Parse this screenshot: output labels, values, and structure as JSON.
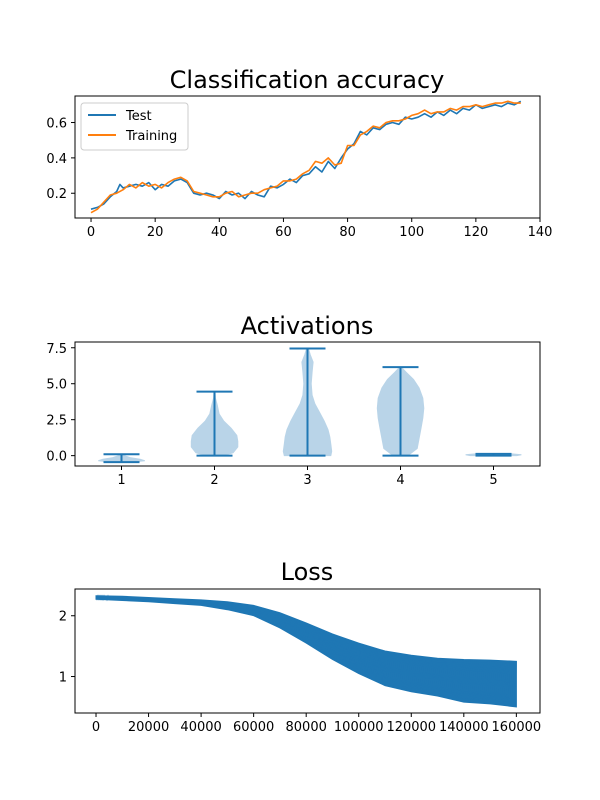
{
  "colors": {
    "test": "#1f77b4",
    "training": "#ff7f0e",
    "violin_fill": "#b9d4e8",
    "violin_line": "#1f77b4"
  },
  "chart_data": [
    {
      "type": "line",
      "title": "Classification accuracy",
      "xlabel": "",
      "ylabel": "",
      "xlim": [
        -5,
        140
      ],
      "ylim": [
        0.06,
        0.75
      ],
      "xticks": [
        "0",
        "20",
        "40",
        "60",
        "80",
        "100",
        "120",
        "140"
      ],
      "yticks": [
        "0.2",
        "0.4",
        "0.6"
      ],
      "legend": "top-left",
      "grid": false,
      "series": [
        {
          "name": "Test",
          "color": "#1f77b4",
          "points": [
            [
              0,
              0.11
            ],
            [
              2,
              0.12
            ],
            [
              4,
              0.14
            ],
            [
              6,
              0.18
            ],
            [
              8,
              0.21
            ],
            [
              9,
              0.25
            ],
            [
              10,
              0.23
            ],
            [
              12,
              0.24
            ],
            [
              14,
              0.25
            ],
            [
              16,
              0.24
            ],
            [
              18,
              0.26
            ],
            [
              20,
              0.22
            ],
            [
              22,
              0.25
            ],
            [
              24,
              0.24
            ],
            [
              26,
              0.27
            ],
            [
              28,
              0.28
            ],
            [
              30,
              0.26
            ],
            [
              32,
              0.2
            ],
            [
              34,
              0.19
            ],
            [
              36,
              0.2
            ],
            [
              38,
              0.19
            ],
            [
              40,
              0.17
            ],
            [
              42,
              0.21
            ],
            [
              44,
              0.19
            ],
            [
              46,
              0.2
            ],
            [
              48,
              0.17
            ],
            [
              50,
              0.21
            ],
            [
              52,
              0.19
            ],
            [
              54,
              0.18
            ],
            [
              56,
              0.24
            ],
            [
              58,
              0.23
            ],
            [
              60,
              0.25
            ],
            [
              62,
              0.28
            ],
            [
              64,
              0.26
            ],
            [
              66,
              0.3
            ],
            [
              68,
              0.31
            ],
            [
              70,
              0.35
            ],
            [
              72,
              0.32
            ],
            [
              74,
              0.38
            ],
            [
              76,
              0.34
            ],
            [
              78,
              0.4
            ],
            [
              80,
              0.45
            ],
            [
              82,
              0.48
            ],
            [
              84,
              0.55
            ],
            [
              86,
              0.53
            ],
            [
              88,
              0.57
            ],
            [
              90,
              0.56
            ],
            [
              92,
              0.59
            ],
            [
              94,
              0.6
            ],
            [
              96,
              0.59
            ],
            [
              98,
              0.63
            ],
            [
              100,
              0.62
            ],
            [
              102,
              0.63
            ],
            [
              104,
              0.65
            ],
            [
              106,
              0.63
            ],
            [
              108,
              0.66
            ],
            [
              110,
              0.64
            ],
            [
              112,
              0.67
            ],
            [
              114,
              0.65
            ],
            [
              116,
              0.68
            ],
            [
              118,
              0.67
            ],
            [
              120,
              0.7
            ],
            [
              122,
              0.68
            ],
            [
              124,
              0.69
            ],
            [
              126,
              0.7
            ],
            [
              128,
              0.69
            ],
            [
              130,
              0.71
            ],
            [
              132,
              0.7
            ],
            [
              134,
              0.72
            ]
          ]
        },
        {
          "name": "Training",
          "color": "#ff7f0e",
          "points": [
            [
              0,
              0.09
            ],
            [
              2,
              0.11
            ],
            [
              4,
              0.15
            ],
            [
              6,
              0.19
            ],
            [
              8,
              0.2
            ],
            [
              10,
              0.22
            ],
            [
              12,
              0.25
            ],
            [
              14,
              0.23
            ],
            [
              16,
              0.26
            ],
            [
              18,
              0.24
            ],
            [
              20,
              0.25
            ],
            [
              22,
              0.23
            ],
            [
              24,
              0.26
            ],
            [
              26,
              0.28
            ],
            [
              28,
              0.29
            ],
            [
              30,
              0.27
            ],
            [
              32,
              0.21
            ],
            [
              34,
              0.2
            ],
            [
              36,
              0.19
            ],
            [
              38,
              0.18
            ],
            [
              40,
              0.18
            ],
            [
              42,
              0.2
            ],
            [
              44,
              0.21
            ],
            [
              46,
              0.18
            ],
            [
              48,
              0.19
            ],
            [
              50,
              0.2
            ],
            [
              52,
              0.2
            ],
            [
              54,
              0.22
            ],
            [
              56,
              0.23
            ],
            [
              58,
              0.24
            ],
            [
              60,
              0.27
            ],
            [
              62,
              0.27
            ],
            [
              64,
              0.28
            ],
            [
              66,
              0.31
            ],
            [
              68,
              0.33
            ],
            [
              70,
              0.38
            ],
            [
              72,
              0.37
            ],
            [
              74,
              0.4
            ],
            [
              76,
              0.36
            ],
            [
              78,
              0.37
            ],
            [
              80,
              0.47
            ],
            [
              82,
              0.47
            ],
            [
              84,
              0.53
            ],
            [
              86,
              0.55
            ],
            [
              88,
              0.58
            ],
            [
              90,
              0.57
            ],
            [
              92,
              0.6
            ],
            [
              94,
              0.61
            ],
            [
              96,
              0.61
            ],
            [
              98,
              0.62
            ],
            [
              100,
              0.64
            ],
            [
              102,
              0.65
            ],
            [
              104,
              0.67
            ],
            [
              106,
              0.65
            ],
            [
              108,
              0.66
            ],
            [
              110,
              0.66
            ],
            [
              112,
              0.68
            ],
            [
              114,
              0.67
            ],
            [
              116,
              0.69
            ],
            [
              118,
              0.69
            ],
            [
              120,
              0.7
            ],
            [
              122,
              0.69
            ],
            [
              124,
              0.7
            ],
            [
              126,
              0.71
            ],
            [
              128,
              0.71
            ],
            [
              130,
              0.72
            ],
            [
              132,
              0.71
            ],
            [
              134,
              0.71
            ]
          ]
        }
      ]
    },
    {
      "type": "violin",
      "title": "Activations",
      "xlabel": "",
      "ylabel": "",
      "xlim": [
        0.5,
        5.5
      ],
      "ylim": [
        -0.72,
        7.9
      ],
      "xticks": [
        "1",
        "2",
        "3",
        "4",
        "5"
      ],
      "yticks": [
        "0.0",
        "2.5",
        "5.0",
        "7.5"
      ],
      "violins": [
        {
          "position": 1,
          "min": -0.45,
          "max": 0.1,
          "halfwidth_profile": [
            [
              -0.45,
              0.1
            ],
            [
              -0.35,
              0.25
            ],
            [
              -0.25,
              0.2
            ],
            [
              -0.15,
              0.1
            ],
            [
              0.0,
              0.03
            ],
            [
              0.1,
              0.01
            ]
          ]
        },
        {
          "position": 2,
          "min": 0.0,
          "max": 4.45,
          "halfwidth_profile": [
            [
              0.0,
              0.08
            ],
            [
              0.2,
              0.2
            ],
            [
              0.6,
              0.25
            ],
            [
              1.0,
              0.25
            ],
            [
              1.4,
              0.24
            ],
            [
              1.9,
              0.18
            ],
            [
              2.4,
              0.1
            ],
            [
              2.9,
              0.05
            ],
            [
              3.5,
              0.03
            ],
            [
              4.0,
              0.01
            ],
            [
              4.45,
              0.005
            ]
          ]
        },
        {
          "position": 3,
          "min": 0.0,
          "max": 7.45,
          "halfwidth_profile": [
            [
              0.0,
              0.25
            ],
            [
              0.3,
              0.26
            ],
            [
              0.8,
              0.25
            ],
            [
              1.3,
              0.24
            ],
            [
              1.8,
              0.22
            ],
            [
              2.4,
              0.18
            ],
            [
              3.0,
              0.13
            ],
            [
              3.6,
              0.08
            ],
            [
              4.2,
              0.05
            ],
            [
              5.0,
              0.04
            ],
            [
              5.8,
              0.05
            ],
            [
              6.5,
              0.06
            ],
            [
              7.0,
              0.03
            ],
            [
              7.45,
              0.01
            ]
          ]
        },
        {
          "position": 4,
          "min": 0.0,
          "max": 6.15,
          "halfwidth_profile": [
            [
              0.0,
              0.08
            ],
            [
              0.5,
              0.18
            ],
            [
              1.2,
              0.2
            ],
            [
              1.9,
              0.22
            ],
            [
              2.6,
              0.24
            ],
            [
              3.3,
              0.25
            ],
            [
              4.0,
              0.24
            ],
            [
              4.7,
              0.2
            ],
            [
              5.3,
              0.14
            ],
            [
              5.8,
              0.06
            ],
            [
              6.15,
              0.01
            ]
          ]
        },
        {
          "position": 5,
          "min": 0.0,
          "max": 0.12,
          "halfwidth_profile": [
            [
              0.0,
              0.25
            ],
            [
              0.06,
              0.3
            ],
            [
              0.12,
              0.2
            ]
          ]
        }
      ]
    },
    {
      "type": "line",
      "title": "Loss",
      "xlabel": "",
      "ylabel": "",
      "xlim": [
        -8000,
        169000
      ],
      "ylim": [
        0.4,
        2.44
      ],
      "xticks": [
        "0",
        "20000",
        "40000",
        "60000",
        "80000",
        "100000",
        "120000",
        "140000",
        "160000"
      ],
      "yticks": [
        "1",
        "2"
      ],
      "series": [
        {
          "name": "",
          "color": "#1f77b4",
          "band_points": [
            [
              0,
              2.33,
              2.27
            ],
            [
              10000,
              2.32,
              2.25
            ],
            [
              20000,
              2.3,
              2.23
            ],
            [
              30000,
              2.28,
              2.2
            ],
            [
              40000,
              2.26,
              2.17
            ],
            [
              50000,
              2.23,
              2.1
            ],
            [
              60000,
              2.17,
              2.0
            ],
            [
              70000,
              2.05,
              1.8
            ],
            [
              80000,
              1.88,
              1.55
            ],
            [
              90000,
              1.7,
              1.28
            ],
            [
              100000,
              1.55,
              1.05
            ],
            [
              110000,
              1.42,
              0.85
            ],
            [
              120000,
              1.35,
              0.75
            ],
            [
              130000,
              1.3,
              0.68
            ],
            [
              140000,
              1.28,
              0.58
            ],
            [
              150000,
              1.27,
              0.55
            ],
            [
              160000,
              1.25,
              0.5
            ]
          ]
        }
      ]
    }
  ]
}
